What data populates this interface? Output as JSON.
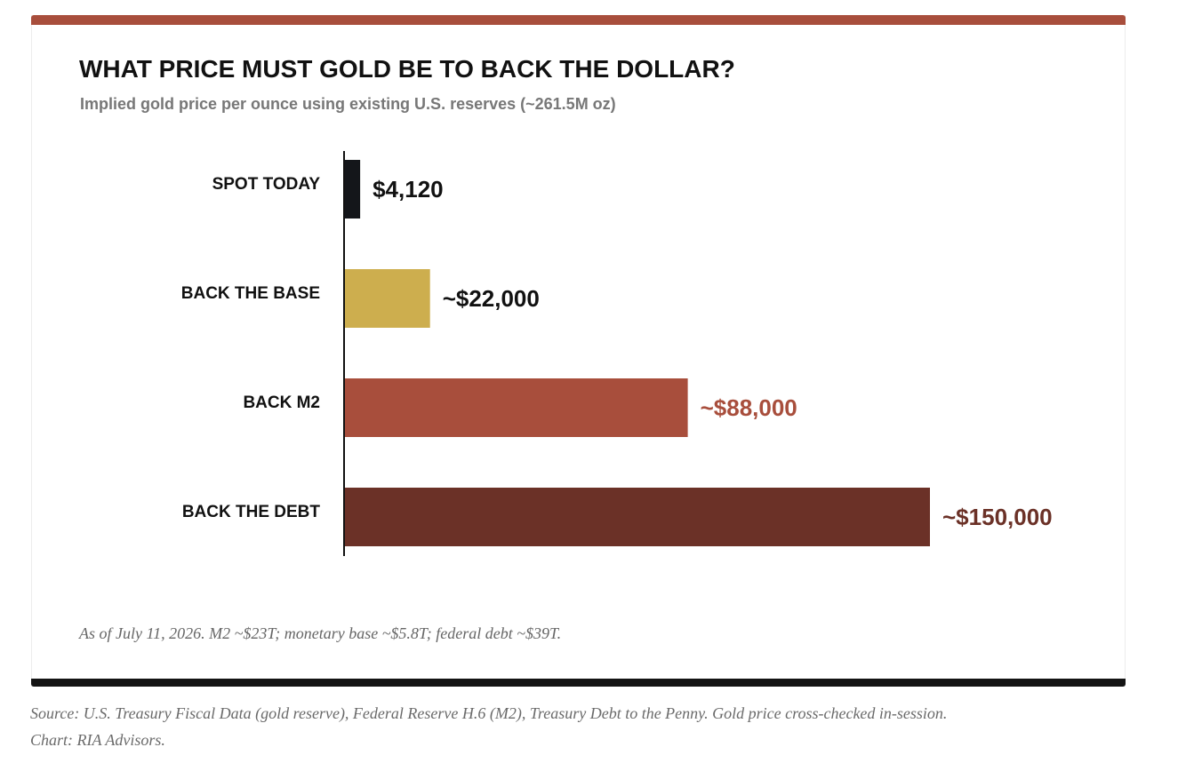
{
  "colors": {
    "accent_top": "#a84e3c",
    "accent_bottom": "#141414",
    "spot": "#14161a",
    "base": "#cdae4e",
    "m2": "#a84e3c",
    "debt": "#6b3127",
    "label": "#111111"
  },
  "chart_data": {
    "type": "bar",
    "orientation": "horizontal",
    "title": "WHAT PRICE MUST GOLD BE TO BACK THE DOLLAR?",
    "subtitle": "Implied gold price per ounce using existing U.S. reserves (~261.5M oz)",
    "xlabel": "",
    "ylabel": "",
    "grid": false,
    "legend": "none",
    "xlim": [
      0,
      150000
    ],
    "categories": [
      "SPOT TODAY",
      "BACK THE BASE",
      "BACK M2",
      "BACK THE DEBT"
    ],
    "values": [
      4120,
      22000,
      88000,
      150000
    ],
    "value_labels": [
      "$4,120",
      "~$22,000",
      "~$88,000",
      "~$150,000"
    ],
    "bar_colors": [
      "#14161a",
      "#cdae4e",
      "#a84e3c",
      "#6b3127"
    ],
    "label_colors": [
      "#111111",
      "#111111",
      "#a84e3c",
      "#6b3127"
    ]
  },
  "notes": {
    "asof": "As of July 11, 2026. M2 ~$23T; monetary base ~$5.8T; federal debt ~$39T.",
    "source_line1": "Source: U.S. Treasury Fiscal Data (gold reserve), Federal Reserve H.6 (M2), Treasury Debt to the Penny. Gold price cross-checked in-session.",
    "source_line2": "Chart: RIA Advisors."
  }
}
